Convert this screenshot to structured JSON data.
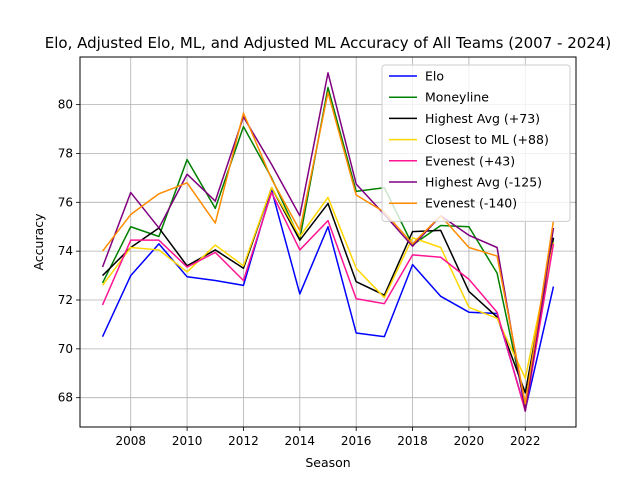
{
  "chart_data": {
    "type": "line",
    "title": "Elo, Adjusted Elo, ML, and Adjusted ML Accuracy of All Teams (2007 - 2024)",
    "xlabel": "Season",
    "ylabel": "Accuracy",
    "xlim": [
      2006.2,
      2023.8
    ],
    "ylim": [
      66.8,
      81.95
    ],
    "xticks": [
      2008,
      2010,
      2012,
      2014,
      2016,
      2018,
      2020,
      2022
    ],
    "yticks": [
      68,
      70,
      72,
      74,
      76,
      78,
      80
    ],
    "grid": true,
    "legend_position": "top-right",
    "x": [
      2007,
      2008,
      2009,
      2010,
      2011,
      2012,
      2013,
      2014,
      2015,
      2016,
      2017,
      2018,
      2019,
      2020,
      2021,
      2022,
      2023
    ],
    "series": [
      {
        "name": "Elo",
        "color": "#0000ff",
        "values": [
          70.5,
          73.0,
          74.3,
          72.95,
          72.8,
          72.6,
          76.5,
          72.25,
          75.0,
          70.65,
          70.5,
          73.45,
          72.15,
          71.5,
          71.45,
          67.5,
          72.55
        ]
      },
      {
        "name": "Moneyline",
        "color": "#008000",
        "values": [
          72.7,
          75.0,
          74.6,
          77.75,
          75.75,
          79.1,
          77.0,
          74.5,
          80.7,
          76.45,
          76.6,
          74.25,
          75.05,
          75.0,
          73.1,
          67.65,
          74.55
        ]
      },
      {
        "name": "Highest Avg (+73)",
        "color": "#000000",
        "values": [
          73.0,
          74.15,
          74.95,
          73.4,
          74.05,
          73.3,
          76.6,
          74.45,
          75.95,
          72.75,
          72.2,
          74.8,
          74.85,
          72.35,
          71.3,
          68.2,
          74.55
        ]
      },
      {
        "name": "Closest to ML (+88)",
        "color": "#ffd700",
        "values": [
          72.6,
          74.15,
          74.05,
          73.15,
          74.25,
          73.4,
          76.6,
          74.6,
          76.2,
          73.3,
          72.1,
          74.55,
          74.15,
          71.7,
          71.25,
          68.8,
          74.35
        ]
      },
      {
        "name": "Evenest (+43)",
        "color": "#ff1493",
        "values": [
          71.8,
          74.45,
          74.45,
          73.35,
          73.95,
          72.8,
          76.4,
          74.05,
          75.25,
          72.05,
          71.85,
          73.85,
          73.75,
          72.85,
          71.5,
          67.45,
          74.3
        ]
      },
      {
        "name": "Highest Avg (-125)",
        "color": "#800080",
        "values": [
          73.35,
          76.4,
          74.95,
          77.15,
          76.05,
          79.5,
          77.55,
          75.45,
          81.3,
          76.75,
          75.5,
          74.2,
          75.45,
          74.65,
          74.15,
          67.45,
          74.95
        ]
      },
      {
        "name": "Evenest (-140)",
        "color": "#ff8c00",
        "values": [
          74.0,
          75.5,
          76.35,
          76.8,
          75.15,
          79.65,
          76.95,
          74.85,
          80.5,
          76.3,
          75.6,
          74.3,
          75.45,
          74.15,
          73.8,
          67.75,
          75.25
        ]
      }
    ]
  }
}
